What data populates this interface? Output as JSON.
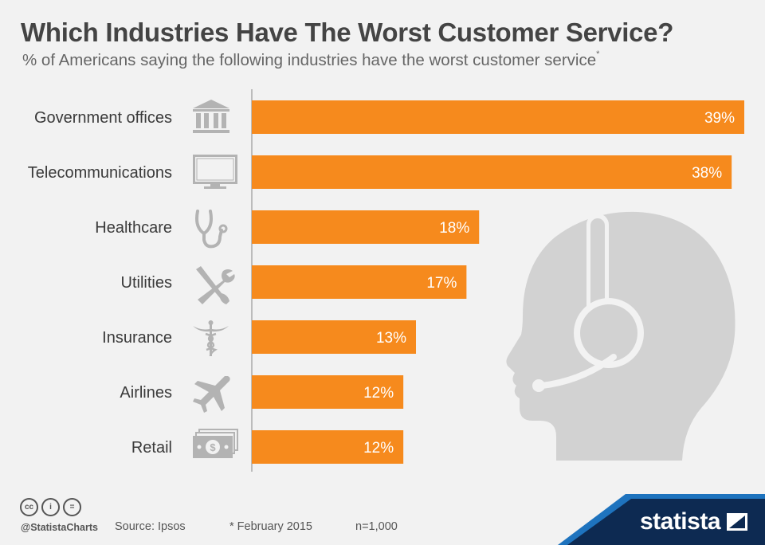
{
  "header": {
    "title": "Which Industries Have The Worst Customer Service?",
    "subtitle": "% of Americans saying the following industries have the worst customer service",
    "subtitle_marker": "*"
  },
  "chart_data": {
    "type": "bar",
    "orientation": "horizontal",
    "categories": [
      "Government offices",
      "Telecommunications",
      "Healthcare",
      "Utilities",
      "Insurance",
      "Airlines",
      "Retail"
    ],
    "values": [
      39,
      38,
      18,
      17,
      13,
      12,
      12
    ],
    "value_labels": [
      "39%",
      "38%",
      "18%",
      "17%",
      "13%",
      "12%",
      "12%"
    ],
    "icons": [
      "government-building-icon",
      "monitor-icon",
      "stethoscope-icon",
      "tools-icon",
      "caduceus-icon",
      "airplane-icon",
      "money-icon"
    ],
    "unit": "%",
    "xlim": [
      0,
      39
    ],
    "bar_color": "#f68a1d",
    "grid": false
  },
  "footer": {
    "handle": "@StatistaCharts",
    "source": "Source: Ipsos",
    "note": "* February 2015",
    "sample": "n=1,000",
    "brand": "statista",
    "cc_labels": [
      "cc",
      "i",
      "="
    ]
  },
  "colors": {
    "background": "#f2f2f2",
    "bar": "#f68a1d",
    "icon": "#b3b3b3",
    "silhouette": "#d2d2d2",
    "brand_navy": "#0d2a52",
    "brand_blue": "#1e73be"
  }
}
